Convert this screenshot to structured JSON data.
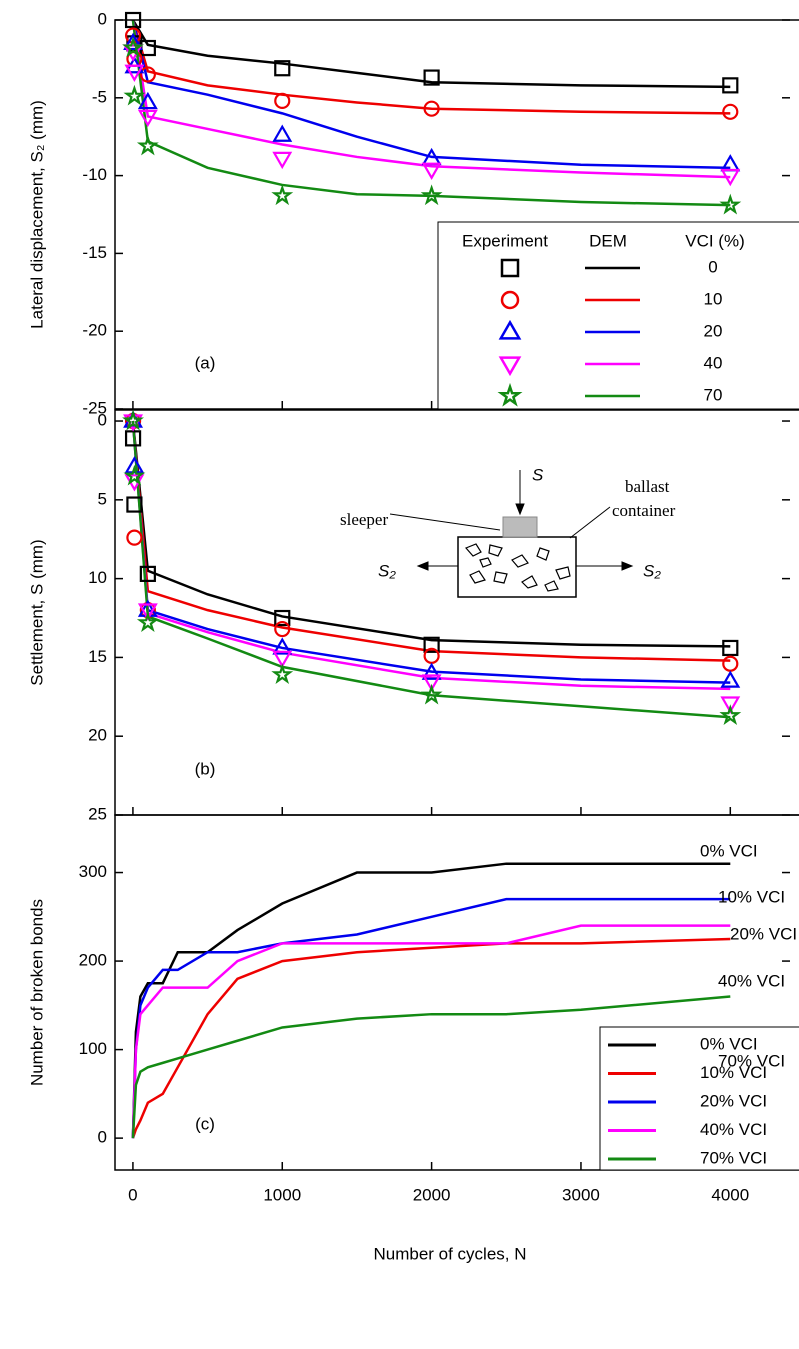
{
  "chart_data": [
    {
      "type": "line",
      "panel_label": "(a)",
      "ylabel": "Lateral displacement, S₂ (mm)",
      "xlim": [
        -120,
        4460
      ],
      "ylim": [
        -25,
        0
      ],
      "yticks": [
        0,
        -5,
        -10,
        -15,
        -20,
        -25
      ],
      "legend_headers": [
        "Experiment",
        "DEM",
        "VCI (%)"
      ],
      "series": [
        {
          "name": "0",
          "color": "#000000",
          "marker": "square",
          "experiment": {
            "x": [
              1,
              10,
              100,
              1000,
              2000,
              4000
            ],
            "values": [
              0,
              -1.5,
              -1.8,
              -3.1,
              -3.7,
              -4.2
            ]
          },
          "dem": {
            "x": [
              0,
              100,
              500,
              1000,
              1500,
              2000,
              3000,
              4000
            ],
            "values": [
              0,
              -1.6,
              -2.3,
              -2.8,
              -3.4,
              -4.0,
              -4.2,
              -4.3
            ]
          }
        },
        {
          "name": "10",
          "color": "#ee0000",
          "marker": "circle",
          "experiment": {
            "x": [
              1,
              10,
              100,
              1000,
              2000,
              4000
            ],
            "values": [
              -1,
              -2.5,
              -3.5,
              -5.2,
              -5.7,
              -5.9
            ]
          },
          "dem": {
            "x": [
              0,
              100,
              500,
              1000,
              1500,
              2000,
              3000,
              4000
            ],
            "values": [
              0,
              -3.3,
              -4.2,
              -4.8,
              -5.3,
              -5.7,
              -5.9,
              -6.0
            ]
          }
        },
        {
          "name": "20",
          "color": "#0000ee",
          "marker": "triangle-up",
          "experiment": {
            "x": [
              1,
              10,
              100,
              1000,
              2000,
              4000
            ],
            "values": [
              -1.5,
              -3,
              -5.3,
              -7.4,
              -8.9,
              -9.3
            ]
          },
          "dem": {
            "x": [
              0,
              100,
              500,
              1000,
              1500,
              2000,
              3000,
              4000
            ],
            "values": [
              0,
              -4.0,
              -4.8,
              -6.0,
              -7.5,
              -8.8,
              -9.3,
              -9.5
            ]
          }
        },
        {
          "name": "40",
          "color": "#ff00ff",
          "marker": "triangle-down",
          "experiment": {
            "x": [
              1,
              10,
              100,
              1000,
              2000,
              4000
            ],
            "values": [
              -2,
              -3.3,
              -6.2,
              -8.9,
              -9.6,
              -10.0
            ]
          },
          "dem": {
            "x": [
              0,
              100,
              500,
              1000,
              1500,
              2000,
              3000,
              4000
            ],
            "values": [
              0,
              -6.2,
              -7.0,
              -8.0,
              -8.8,
              -9.4,
              -9.8,
              -10.1
            ]
          }
        },
        {
          "name": "70",
          "color": "#138a13",
          "marker": "star",
          "experiment": {
            "x": [
              1,
              10,
              100,
              1000,
              2000,
              4000
            ],
            "values": [
              -1.8,
              -4.9,
              -8.1,
              -11.3,
              -11.3,
              -11.9
            ]
          },
          "dem": {
            "x": [
              0,
              100,
              500,
              1000,
              1500,
              2000,
              3000,
              4000
            ],
            "values": [
              0,
              -7.8,
              -9.5,
              -10.6,
              -11.2,
              -11.3,
              -11.7,
              -11.9
            ]
          }
        }
      ]
    },
    {
      "type": "line",
      "panel_label": "(b)",
      "ylabel": "Settlement, S (mm)",
      "xlim": [
        -120,
        4460
      ],
      "ylim": [
        25,
        -0.7
      ],
      "yticks": [
        0,
        5,
        10,
        15,
        20,
        25
      ],
      "inset": {
        "load": "S",
        "sleeper": "sleeper",
        "container": [
          "ballast",
          "container"
        ],
        "lateral": "S₂"
      },
      "series": [
        {
          "name": "0",
          "color": "#000000",
          "marker": "square",
          "experiment": {
            "x": [
              1,
              10,
              100,
              1000,
              2000,
              4000
            ],
            "values": [
              1.1,
              5.3,
              9.7,
              12.5,
              14.2,
              14.4
            ]
          },
          "dem": {
            "x": [
              0,
              100,
              500,
              1000,
              2000,
              3000,
              4000
            ],
            "values": [
              0,
              9.5,
              11,
              12.4,
              13.9,
              14.2,
              14.3
            ]
          }
        },
        {
          "name": "10",
          "color": "#ee0000",
          "marker": "circle",
          "experiment": {
            "x": [
              1,
              10,
              100,
              1000,
              2000,
              4000
            ],
            "values": [
              0,
              7.4,
              12,
              13.2,
              14.9,
              15.4
            ]
          },
          "dem": {
            "x": [
              0,
              100,
              500,
              1000,
              2000,
              3000,
              4000
            ],
            "values": [
              0,
              10.8,
              12,
              13.1,
              14.6,
              15,
              15.2
            ]
          }
        },
        {
          "name": "20",
          "color": "#0000ee",
          "marker": "triangle-up",
          "experiment": {
            "x": [
              1,
              10,
              100,
              1000,
              2000,
              4000
            ],
            "values": [
              0,
              2.9,
              12,
              14.4,
              16,
              16.5
            ]
          },
          "dem": {
            "x": [
              0,
              100,
              500,
              1000,
              2000,
              3000,
              4000
            ],
            "values": [
              0,
              12,
              13.2,
              14.4,
              15.9,
              16.4,
              16.6
            ]
          }
        },
        {
          "name": "40",
          "color": "#ff00ff",
          "marker": "triangle-down",
          "experiment": {
            "x": [
              1,
              10,
              100,
              1000,
              2000,
              4000
            ],
            "values": [
              0,
              3.8,
              12,
              15,
              16.5,
              17.9
            ]
          },
          "dem": {
            "x": [
              0,
              100,
              500,
              1000,
              2000,
              3000,
              4000
            ],
            "values": [
              0,
              12.2,
              13.4,
              14.7,
              16.3,
              16.8,
              17
            ]
          }
        },
        {
          "name": "70",
          "color": "#138a13",
          "marker": "star",
          "experiment": {
            "x": [
              1,
              10,
              100,
              1000,
              2000,
              4000
            ],
            "values": [
              0,
              3.5,
              12.8,
              16.1,
              17.4,
              18.7
            ]
          },
          "dem": {
            "x": [
              0,
              100,
              500,
              1000,
              2000,
              3000,
              4000
            ],
            "values": [
              0,
              12.4,
              13.8,
              15.6,
              17.4,
              18.1,
              18.8
            ]
          }
        }
      ]
    },
    {
      "type": "line",
      "panel_label": "(c)",
      "ylabel": "Number of broken bonds",
      "xlabel": "Number of cycles, N",
      "xlim": [
        -120,
        4460
      ],
      "xticks": [
        0,
        1000,
        2000,
        3000,
        4000
      ],
      "ylim": [
        -36,
        365
      ],
      "yticks": [
        0,
        100,
        200,
        300
      ],
      "series": [
        {
          "name": "0% VCI",
          "color": "#000000",
          "dem": {
            "x": [
              0,
              20,
              50,
              100,
              200,
              300,
              500,
              700,
              1000,
              1500,
              2000,
              2500,
              3000,
              4000
            ],
            "values": [
              0,
              120,
              160,
              175,
              175,
              210,
              210,
              235,
              265,
              300,
              300,
              310,
              310,
              310
            ]
          }
        },
        {
          "name": "10% VCI",
          "color": "#ee0000",
          "dem": {
            "x": [
              0,
              20,
              50,
              100,
              200,
              300,
              500,
              700,
              1000,
              1500,
              2000,
              2500,
              3000,
              4000
            ],
            "values": [
              0,
              10,
              20,
              40,
              50,
              80,
              140,
              180,
              200,
              210,
              215,
              220,
              220,
              225
            ]
          }
        },
        {
          "name": "20% VCI",
          "color": "#0000ee",
          "dem": {
            "x": [
              0,
              20,
              50,
              100,
              200,
              300,
              500,
              700,
              1000,
              1500,
              2000,
              2500,
              3000,
              4000
            ],
            "values": [
              0,
              100,
              150,
              170,
              190,
              190,
              210,
              210,
              220,
              230,
              250,
              270,
              270,
              270
            ]
          }
        },
        {
          "name": "40% VCI",
          "color": "#ff00ff",
          "dem": {
            "x": [
              0,
              20,
              50,
              100,
              200,
              300,
              500,
              700,
              1000,
              1500,
              2000,
              2500,
              3000,
              4000
            ],
            "values": [
              0,
              100,
              140,
              150,
              170,
              170,
              170,
              200,
              220,
              220,
              220,
              220,
              240,
              240
            ]
          }
        },
        {
          "name": "70% VCI",
          "color": "#138a13",
          "dem": {
            "x": [
              0,
              20,
              50,
              100,
              200,
              300,
              500,
              700,
              1000,
              1500,
              2000,
              2500,
              3000,
              4000
            ],
            "values": [
              0,
              60,
              75,
              80,
              85,
              90,
              100,
              110,
              125,
              135,
              140,
              140,
              145,
              160
            ]
          }
        }
      ]
    }
  ]
}
